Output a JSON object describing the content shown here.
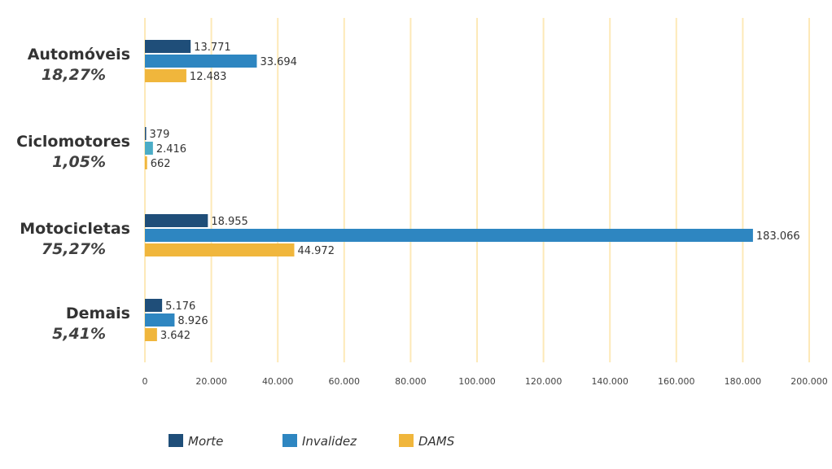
{
  "chart_data": {
    "type": "bar",
    "orientation": "horizontal",
    "categories": [
      {
        "name": "Automóveis",
        "share": "18,27%"
      },
      {
        "name": "Ciclomotores",
        "share": "1,05%"
      },
      {
        "name": "Motocicletas",
        "share": "75,27%"
      },
      {
        "name": "Demais",
        "share": "5,41%"
      }
    ],
    "series": [
      {
        "name": "Morte",
        "color": "#1f4e79",
        "values": [
          13771,
          379,
          18955,
          5176
        ],
        "labels": [
          "13.771",
          "379",
          "18.955",
          "5.176"
        ]
      },
      {
        "name": "Invalidez",
        "color": "#2e86c1",
        "values": [
          33694,
          2416,
          183066,
          8926
        ],
        "labels": [
          "33.694",
          "2.416",
          "183.066",
          "8.926"
        ]
      },
      {
        "name": "DAMS",
        "color": "#f0b63c",
        "values": [
          12483,
          662,
          44972,
          3642
        ],
        "labels": [
          "12.483",
          "662",
          "44.972",
          "3.642"
        ]
      }
    ],
    "highlight_colors": {
      "Ciclomotores-Invalidez": "#4bacc6"
    },
    "xlim": [
      0,
      200000
    ],
    "xticks": [
      0,
      20000,
      40000,
      60000,
      80000,
      100000,
      120000,
      140000,
      160000,
      180000,
      200000
    ],
    "xtick_labels": [
      "0",
      "20.000",
      "40.000",
      "60.000",
      "80.000",
      "100.000",
      "120.000",
      "140.000",
      "160.000",
      "180.000",
      "200.000"
    ],
    "grid": true,
    "grid_color": "#fde9b8",
    "legend": "bottom-left",
    "title": "",
    "xlabel": "",
    "ylabel": ""
  }
}
